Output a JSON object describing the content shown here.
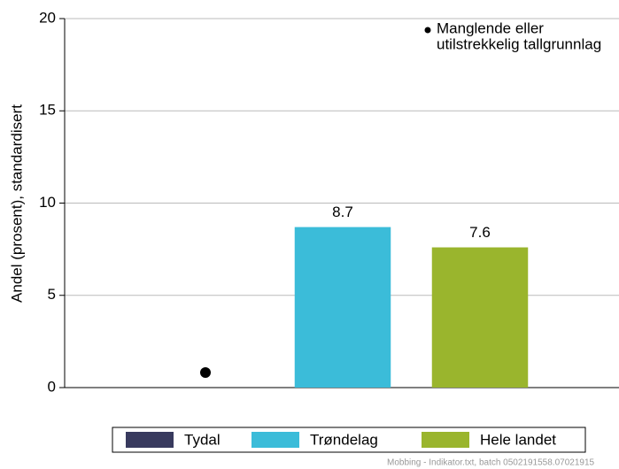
{
  "chart_data": {
    "type": "bar",
    "ylabel": "Andel (prosent), standardisert",
    "categories": [
      "Tydal",
      "Trøndelag",
      "Hele landet"
    ],
    "series": [
      {
        "name": "Tydal",
        "color": "#383a5e"
      },
      {
        "name": "Trøndelag",
        "color": "#3bbcd9"
      },
      {
        "name": "Hele landet",
        "color": "#9ab52d"
      }
    ],
    "values": [
      null,
      8.7,
      7.6
    ],
    "ylim": [
      0,
      20
    ],
    "yticks": [
      0,
      5,
      10,
      15,
      20
    ],
    "grid": true,
    "annotation": [
      "Manglende eller",
      "utilstrekkelig tallgrunnlag"
    ],
    "footer": "Mobbing - Indikator.txt, batch 0502191558.07021915"
  }
}
